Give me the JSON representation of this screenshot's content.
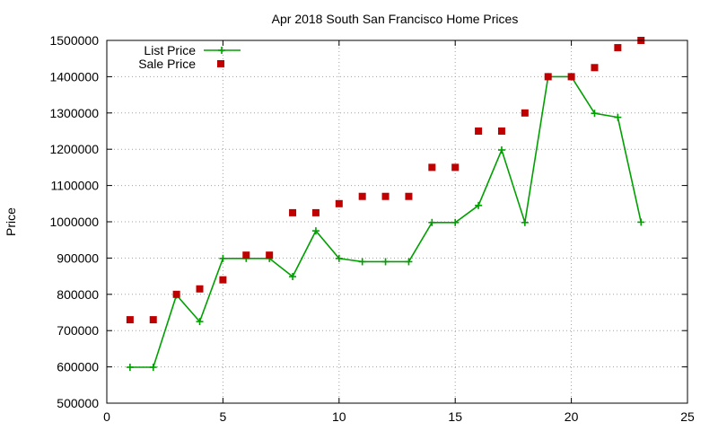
{
  "chart_data": {
    "type": "line",
    "title": "Apr 2018 South San Francisco Home Prices",
    "xlabel": "",
    "ylabel": "Price",
    "xlim": [
      0,
      25
    ],
    "ylim": [
      500000,
      1500000
    ],
    "xticks": [
      0,
      5,
      10,
      15,
      20,
      25
    ],
    "yticks": [
      500000,
      600000,
      700000,
      800000,
      900000,
      1000000,
      1100000,
      1200000,
      1300000,
      1400000,
      1500000
    ],
    "grid": true,
    "legend_position": "top-left",
    "series": [
      {
        "name": "List Price",
        "style": "line+crosses",
        "color": "#00a000",
        "x": [
          1,
          2,
          3,
          4,
          5,
          6,
          7,
          8,
          9,
          10,
          11,
          12,
          13,
          14,
          15,
          16,
          17,
          18,
          19,
          20,
          21,
          22,
          23
        ],
        "y": [
          599000,
          599000,
          798000,
          725000,
          899000,
          899000,
          899000,
          849000,
          975000,
          899000,
          890000,
          890000,
          890000,
          998000,
          998000,
          1045000,
          1198000,
          998000,
          1400000,
          1400000,
          1299000,
          1288000,
          999000
        ]
      },
      {
        "name": "Sale Price",
        "style": "squares",
        "color": "#c00000",
        "x": [
          1,
          2,
          3,
          4,
          5,
          6,
          7,
          8,
          9,
          10,
          11,
          12,
          13,
          14,
          15,
          16,
          17,
          18,
          19,
          20,
          21,
          22,
          23
        ],
        "y": [
          730000,
          730000,
          800000,
          815000,
          840000,
          908000,
          908000,
          1025000,
          1025000,
          1050000,
          1070000,
          1070000,
          1070000,
          1150000,
          1150000,
          1250000,
          1250000,
          1300000,
          1400000,
          1400000,
          1425000,
          1480000,
          1500000
        ]
      }
    ]
  }
}
